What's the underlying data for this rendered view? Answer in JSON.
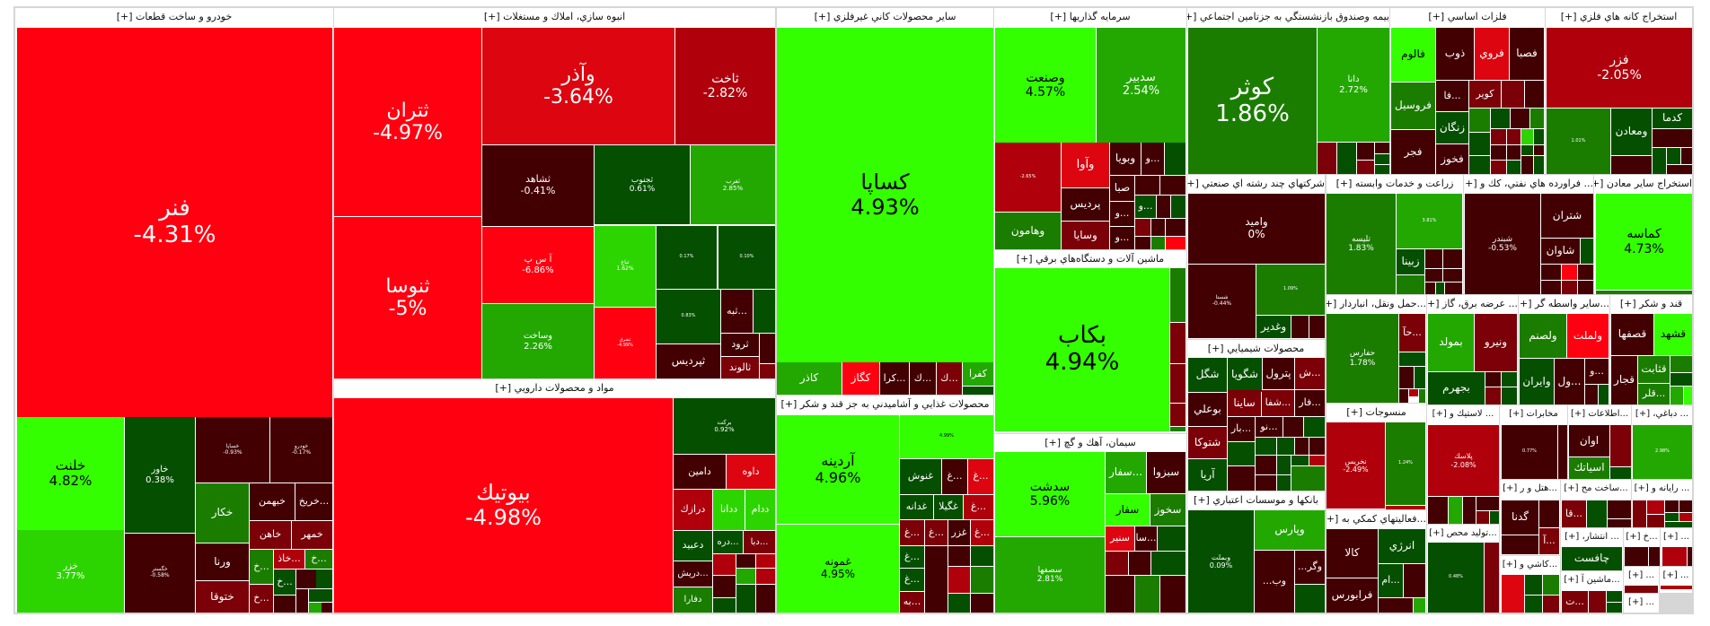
{
  "palette": {
    "R1": "#ff0010",
    "R2": "#dc0510",
    "R3": "#b0000c",
    "R4": "#7b0008",
    "R5": "#430003",
    "G1": "#33ff00",
    "G2": "#2dd500",
    "G3": "#22a800",
    "G4": "#1a7d00",
    "G5": "#054f00"
  },
  "sectors": [
    "خودرو و ساخت قطعات [+]",
    "انبوه سازي، املاك و مستغلات [+]",
    "مواد و محصولات دارويي [+]",
    "ساير محصولات كاني غيرفلزي [+]",
    "محصولات غذايي و آشاميدني به جز قند و شكر [+]",
    "سرمايه گذاريها [+]",
    "ماشين آلات و دستگاه‌هاي برقي [+]",
    "سيمان، آهك و گچ [+]",
    "بيمه وصندوق بازنشستگي به جزتامين اجتماعي [+]",
    "شركتهاي چند رشته اي صنعتي [+]",
    "محصولات شيميايي [+]",
    "بانكها و موسسات اعتباري [+]",
    "فلزات اساسي [+]",
    "استخراج كانه هاي فلزي [+]",
    "زراعت و خدمات وابسته [+]",
    "... فراورده هاي نفتي، كك و [+]",
    "استخراج ساير معادن [+]",
    "...حمل ونقل، انباردار [+]",
    "منسوجات [+]",
    "...فعاليتهاي كمكي به [+]",
    "... عرضه برق، گاز [+]",
    "...ساير واسطه گر [+]",
    "قند و شكر [+]",
    "... لاستيك و [+]",
    "...توليد محص [+]",
    "مخابرات [+]",
    "...اطلاعات [+]",
    "... دباغي، [+]",
    "...هتل و ر [+]",
    "...ساخت مح [+]",
    "... رايانه و [+]",
    "...كاشي و [+]",
    "... انتشار، [+]",
    "...ماشين آ [+]",
    "...خ [+]",
    "... [+]",
    "... [+]",
    "... [+]",
    "... [+]"
  ],
  "tiles": [
    {
      "s": "فنر",
      "p": "-4.31%",
      "c": "R1"
    },
    {
      "s": "خلنت",
      "p": "4.82%",
      "c": "G1"
    },
    {
      "s": "خزر",
      "p": "3.77%",
      "c": "G2"
    },
    {
      "s": "خاور",
      "p": "0.38%",
      "c": "G5"
    },
    {
      "s": "خگستر",
      "p": "-0.58%",
      "c": "R5"
    },
    {
      "s": "خساپا",
      "p": "-0.93%",
      "c": "R5"
    },
    {
      "s": "خودرو",
      "p": "-0.17%",
      "c": "R5"
    },
    {
      "s": "خكار",
      "c": "G4"
    },
    {
      "s": "ورنا",
      "c": "R5"
    },
    {
      "s": "ختوقا",
      "c": "R4"
    },
    {
      "s": "خبهمن",
      "c": "R5"
    },
    {
      "s": "خريخ...",
      "c": "R5"
    },
    {
      "s": "خاهن",
      "c": "R4"
    },
    {
      "s": "خمهر",
      "c": "R4"
    },
    {
      "s": "خ...",
      "c": "G4"
    },
    {
      "s": "خ...",
      "c": "R4"
    },
    {
      "s": "خاذ...",
      "c": "R3"
    },
    {
      "s": "خ...",
      "c": "G4"
    },
    {
      "s": "خ...",
      "c": "G5"
    },
    {
      "c": "R5"
    },
    {
      "c": "G5"
    },
    {
      "c": "R5"
    },
    {
      "c": "R5"
    },
    {
      "c": "G5"
    },
    {
      "c": "G3"
    },
    {
      "c": "R5"
    },
    {
      "s": "ثتران",
      "p": "-4.97%",
      "c": "R1"
    },
    {
      "s": "ثنوسا",
      "p": "-5%",
      "c": "R1"
    },
    {
      "s": "وآذر",
      "p": "-3.64%",
      "c": "R2"
    },
    {
      "s": "ثاخت",
      "p": "-2.82%",
      "c": "R3"
    },
    {
      "s": "ثشاهد",
      "p": "-0.41%",
      "c": "R5"
    },
    {
      "s": "ثجنوب",
      "p": "0.61%",
      "c": "G5"
    },
    {
      "s": "ثغرب",
      "p": "2.85%",
      "c": "G3"
    },
    {
      "s": "آ س پ",
      "p": "-6.86%",
      "c": "R1"
    },
    {
      "s": "وساخت",
      "p": "2.26%",
      "c": "G3"
    },
    {
      "s": "ثباغ",
      "p": "1.62%",
      "c": "G2"
    },
    {
      "s": "ثشرق",
      "p": "-4.99%",
      "c": "R1"
    },
    {
      "p": "0.17%",
      "c": "G5"
    },
    {
      "p": "0.10%",
      "c": "G5"
    },
    {
      "p": "0.83%",
      "c": "G5"
    },
    {
      "s": "ثبه...",
      "c": "R5"
    },
    {
      "c": "G5"
    },
    {
      "s": "ثرود",
      "c": "R5"
    },
    {
      "s": "ثالوند",
      "c": "R4"
    },
    {
      "s": "ثپرديس",
      "c": "R5"
    },
    {
      "c": "R5"
    },
    {
      "c": "R4"
    },
    {
      "s": "بيوتيك",
      "p": "-4.98%",
      "c": "R1"
    },
    {
      "s": "بركت",
      "p": "0.92%",
      "c": "G5"
    },
    {
      "s": "دامين",
      "c": "R5"
    },
    {
      "s": "داوه",
      "c": "R2"
    },
    {
      "s": "درازك",
      "c": "R3"
    },
    {
      "s": "ددانا",
      "c": "G2"
    },
    {
      "s": "ددام",
      "c": "G2"
    },
    {
      "s": "دعبيد",
      "c": "G5"
    },
    {
      "s": "دره...",
      "c": "G5"
    },
    {
      "s": "دبا...",
      "c": "R4"
    },
    {
      "s": "دريش...",
      "c": "R5"
    },
    {
      "s": "دفارا",
      "c": "G4"
    },
    {
      "c": "R3"
    },
    {
      "c": "R5"
    },
    {
      "c": "R3"
    },
    {
      "c": "R5"
    },
    {
      "c": "G5"
    },
    {
      "c": "G3"
    },
    {
      "c": "R3"
    },
    {
      "c": "G5"
    },
    {
      "c": "R5"
    },
    {
      "s": "كساپا",
      "p": "4.93%",
      "c": "G1"
    },
    {
      "s": "كاذر",
      "c": "G3"
    },
    {
      "s": "كگاز",
      "c": "R1"
    },
    {
      "s": "كرا...",
      "c": "R5"
    },
    {
      "s": "ك...",
      "c": "R5"
    },
    {
      "s": "ك...",
      "c": "R4"
    },
    {
      "s": "كفرا",
      "c": "G3"
    },
    {
      "c": "G5"
    },
    {
      "s": "آردينه",
      "p": "4.96%",
      "c": "G1"
    },
    {
      "s": "غمونه",
      "p": "4.95%",
      "c": "G1"
    },
    {
      "p": "4.99%",
      "c": "G1"
    },
    {
      "s": "غنوش",
      "c": "G5"
    },
    {
      "s": "غ...",
      "c": "R5"
    },
    {
      "s": "غ...",
      "c": "R2"
    },
    {
      "s": "غدانه",
      "c": "G5"
    },
    {
      "s": "غگيلا",
      "c": "G5"
    },
    {
      "s": "غ...",
      "c": "R3"
    },
    {
      "s": "غ...",
      "c": "R4"
    },
    {
      "s": "غ...",
      "c": "R4"
    },
    {
      "s": "غزر",
      "c": "R5"
    },
    {
      "s": "غ...",
      "c": "R3"
    },
    {
      "s": "غ...",
      "c": "G5"
    },
    {
      "s": "غ...",
      "c": "G5"
    },
    {
      "s": "به...",
      "c": "R4"
    },
    {
      "c": "R5"
    },
    {
      "c": "R5"
    },
    {
      "c": "G5"
    },
    {
      "c": "R3"
    },
    {
      "c": "G4"
    },
    {
      "c": "G5"
    },
    {
      "c": "R5"
    },
    {
      "s": "وصنعت",
      "p": "4.57%",
      "c": "G1"
    },
    {
      "s": "سدبير",
      "p": "2.54%",
      "c": "G3"
    },
    {
      "p": "-2.65%",
      "c": "R3"
    },
    {
      "s": "وهامون",
      "c": "G4"
    },
    {
      "s": "وآوا",
      "c": "R2"
    },
    {
      "s": "پرديس",
      "c": "R5"
    },
    {
      "s": "وسايا",
      "c": "R4"
    },
    {
      "s": "وبويا",
      "c": "R5"
    },
    {
      "s": "و...",
      "c": "R5"
    },
    {
      "c": "G5"
    },
    {
      "s": "صبا",
      "c": "R5"
    },
    {
      "c": "R5"
    },
    {
      "c": "R5"
    },
    {
      "s": "و...",
      "c": "G5"
    },
    {
      "c": "R5"
    },
    {
      "c": "G5"
    },
    {
      "s": "و...",
      "c": "R5"
    },
    {
      "s": "و...",
      "c": "R5"
    },
    {
      "c": "R4"
    },
    {
      "c": "R5"
    },
    {
      "c": "R5"
    },
    {
      "c": "R5"
    },
    {
      "c": "G4"
    },
    {
      "c": "R1"
    },
    {
      "s": "بكاب",
      "p": "4.94%",
      "c": "G1"
    },
    {
      "c": "G4"
    },
    {
      "c": "R4"
    },
    {
      "c": "R4"
    },
    {
      "c": "R4"
    },
    {
      "c": "G4"
    },
    {
      "s": "سدشت",
      "p": "5.96%",
      "c": "G1"
    },
    {
      "s": "سصفها",
      "p": "2.81%",
      "c": "G3"
    },
    {
      "s": "سفار...",
      "c": "G3"
    },
    {
      "s": "سبزوا",
      "c": "R5"
    },
    {
      "s": "سفار",
      "c": "G1"
    },
    {
      "s": "سخوز",
      "c": "G4"
    },
    {
      "s": "سنير",
      "c": "R2"
    },
    {
      "s": "سا...",
      "c": "R5"
    },
    {
      "c": "G5"
    },
    {
      "c": "R4"
    },
    {
      "c": "R5"
    },
    {
      "c": "G5"
    },
    {
      "c": "R5"
    },
    {
      "c": "G4"
    },
    {
      "c": "R5"
    },
    {
      "s": "كوثر",
      "p": "1.86%",
      "c": "G4"
    },
    {
      "s": "دانا",
      "p": "2.72%",
      "c": "G3"
    },
    {
      "c": "R4"
    },
    {
      "c": "G5"
    },
    {
      "c": "R5"
    },
    {
      "c": "R4"
    },
    {
      "c": "R5"
    },
    {
      "c": "G5"
    },
    {
      "c": "G5"
    },
    {
      "s": "واميد",
      "p": "0%",
      "c": "R5"
    },
    {
      "s": "شستا",
      "p": "-0.44%",
      "c": "R5"
    },
    {
      "p": "1.09%",
      "c": "G4"
    },
    {
      "s": "وغدير",
      "c": "G5"
    },
    {
      "c": "R5"
    },
    {
      "c": "R5"
    },
    {
      "s": "شگل",
      "c": "G5"
    },
    {
      "s": "شگويا",
      "c": "G5"
    },
    {
      "s": "پترول",
      "c": "R5"
    },
    {
      "s": "ش...",
      "c": "R4"
    },
    {
      "s": "بوعلي",
      "c": "R5"
    },
    {
      "s": "ساينا",
      "c": "R4"
    },
    {
      "s": "شفا...",
      "c": "R4"
    },
    {
      "s": "فار...",
      "c": "R5"
    },
    {
      "s": "شتوكا",
      "c": "R4"
    },
    {
      "s": "آريا",
      "c": "G5"
    },
    {
      "s": "بار...",
      "c": "R5"
    },
    {
      "s": "نو...",
      "c": "R5"
    },
    {
      "c": "R5"
    },
    {
      "c": "G5"
    },
    {
      "c": "G5"
    },
    {
      "c": "G5"
    },
    {
      "c": "G5"
    },
    {
      "c": "R5"
    },
    {
      "c": "R5"
    },
    {
      "c": "R5"
    },
    {
      "c": "R5"
    },
    {
      "c": "G5"
    },
    {
      "c": "G5"
    },
    {
      "c": "R3"
    },
    {
      "c": "R5"
    },
    {
      "c": "G5"
    },
    {
      "c": "G4"
    },
    {
      "s": "وبملت",
      "p": "0.09%",
      "c": "G5"
    },
    {
      "s": "وپارس",
      "c": "G3"
    },
    {
      "s": "...وب",
      "c": "R5"
    },
    {
      "s": "...وگر",
      "c": "R5"
    },
    {
      "c": "G5"
    },
    {
      "s": "فالوم",
      "c": "G1"
    },
    {
      "s": "فروسيل",
      "c": "G4"
    },
    {
      "s": "فجر",
      "c": "R5"
    },
    {
      "s": "ذوب",
      "c": "R5"
    },
    {
      "s": "فروي",
      "c": "R2"
    },
    {
      "s": "فصبا",
      "c": "R5"
    },
    {
      "s": "فا...",
      "c": "R5"
    },
    {
      "s": "كوير",
      "c": "R4"
    },
    {
      "c": "R4"
    },
    {
      "c": "R5"
    },
    {
      "s": "زنگان",
      "c": "G5"
    },
    {
      "s": "فخوز",
      "c": "R5"
    },
    {
      "c": "G4"
    },
    {
      "c": "G5"
    },
    {
      "c": "R5"
    },
    {
      "c": "G4"
    },
    {
      "c": "G5"
    },
    {
      "c": "R4"
    },
    {
      "c": "R4"
    },
    {
      "c": "G2"
    },
    {
      "c": "G5"
    },
    {
      "c": "G5"
    },
    {
      "c": "R5"
    },
    {
      "c": "R5"
    },
    {
      "c": "G5"
    },
    {
      "c": "R5"
    },
    {
      "c": "R4"
    },
    {
      "c": "G5"
    },
    {
      "c": "R5"
    },
    {
      "c": "G5"
    },
    {
      "s": "فزر",
      "p": "-2.05%",
      "c": "R3"
    },
    {
      "p": "1.01%",
      "c": "G4"
    },
    {
      "s": "ومعادن",
      "c": "G5"
    },
    {
      "s": "كدما",
      "c": "G5"
    },
    {
      "c": "R5"
    },
    {
      "c": "R5"
    },
    {
      "c": "G5"
    },
    {
      "c": "G5"
    },
    {
      "c": "R5"
    },
    {
      "c": "R5"
    },
    {
      "s": "تليسه",
      "p": "1.83%",
      "c": "G4"
    },
    {
      "p": "3.81%",
      "c": "G3"
    },
    {
      "s": "زبينا",
      "c": "G5"
    },
    {
      "c": "G4"
    },
    {
      "c": "R5"
    },
    {
      "c": "R5"
    },
    {
      "c": "R5"
    },
    {
      "c": "R5"
    },
    {
      "c": "R5"
    },
    {
      "c": "G5"
    },
    {
      "c": "R5"
    },
    {
      "s": "شبندر",
      "p": "-0.53%",
      "c": "R5"
    },
    {
      "s": "شتران",
      "c": "R5"
    },
    {
      "s": "شاوان",
      "c": "R5"
    },
    {
      "c": "G5"
    },
    {
      "c": "R5"
    },
    {
      "c": "R1"
    },
    {
      "c": "R5"
    },
    {
      "c": "R5"
    },
    {
      "c": "R4"
    },
    {
      "c": "R5"
    },
    {
      "s": "كماسه",
      "p": "4.73%",
      "c": "G1"
    },
    {
      "c": "G4"
    },
    {
      "s": "حفارس",
      "p": "1.78%",
      "c": "G4"
    },
    {
      "s": "حآ...",
      "c": "R4"
    },
    {
      "c": "G5"
    },
    {
      "c": "R5"
    },
    {
      "c": "G5"
    },
    {
      "c": "R5"
    },
    {
      "c": "R3"
    },
    {
      "c": "G4"
    },
    {
      "s": "نخريس",
      "p": "-2.49%",
      "c": "R3"
    },
    {
      "p": "1.24%",
      "c": "G4"
    },
    {
      "c": "R3"
    },
    {
      "s": "كالا",
      "c": "R5"
    },
    {
      "s": "فرابورس",
      "c": "R5"
    },
    {
      "s": "انرژي",
      "c": "G5"
    },
    {
      "s": "ام...",
      "c": "G5"
    },
    {
      "c": "R5"
    },
    {
      "c": "R5"
    },
    {
      "c": "G3"
    },
    {
      "s": "بمولد",
      "c": "G3"
    },
    {
      "s": "ونيرو",
      "c": "R4"
    },
    {
      "s": "بجهرم",
      "c": "G5"
    },
    {
      "c": "R5"
    },
    {
      "c": "G5"
    },
    {
      "c": "R4"
    },
    {
      "c": "G5"
    },
    {
      "s": "ولصنم",
      "c": "G4"
    },
    {
      "s": "ولملت",
      "c": "R1"
    },
    {
      "s": "وايران",
      "c": "G5"
    },
    {
      "s": "ول...",
      "c": "R5"
    },
    {
      "s": "و...",
      "c": "R5"
    },
    {
      "c": "R5"
    },
    {
      "c": "G5"
    },
    {
      "s": "قصفها",
      "c": "R5"
    },
    {
      "s": "قشهد",
      "c": "G1"
    },
    {
      "s": "قجار",
      "c": "R5"
    },
    {
      "s": "قثابت",
      "c": "G4"
    },
    {
      "s": "قلر...",
      "c": "G4"
    },
    {
      "c": "G4"
    },
    {
      "c": "G5"
    },
    {
      "c": "G3"
    },
    {
      "c": "G1"
    },
    {
      "s": "پلاسك",
      "p": "-2.08%",
      "c": "R3"
    },
    {
      "c": "R5"
    },
    {
      "c": "G3"
    },
    {
      "c": "R5"
    },
    {
      "c": "R5"
    },
    {
      "c": "R4"
    },
    {
      "c": "G5"
    },
    {
      "p": "0.48%",
      "c": "G5"
    },
    {
      "c": "R4"
    },
    {
      "p": "0.77%",
      "c": "R5"
    },
    {
      "c": "R5"
    },
    {
      "s": "اوان",
      "c": "R5"
    },
    {
      "s": "اسياتك",
      "c": "G4"
    },
    {
      "c": "R4"
    },
    {
      "c": "G5"
    },
    {
      "p": "2.98%",
      "c": "G3"
    },
    {
      "s": "گدنا",
      "c": "R5"
    },
    {
      "c": "R5"
    },
    {
      "s": "آ...",
      "c": "R4"
    },
    {
      "c": "R5"
    },
    {
      "s": "قا...",
      "c": "R4"
    },
    {
      "c": "G5"
    },
    {
      "c": "R5"
    },
    {
      "c": "R5"
    },
    {
      "c": "R4"
    },
    {
      "c": "R3"
    },
    {
      "c": "R5"
    },
    {
      "c": "R5"
    },
    {
      "c": "R4"
    },
    {
      "c": "G5"
    },
    {
      "c": "R3"
    },
    {
      "c": "G5"
    },
    {
      "c": "R2"
    },
    {
      "c": "G5"
    },
    {
      "c": "G4"
    },
    {
      "c": "G5"
    },
    {
      "c": "R4"
    },
    {
      "s": "چافست",
      "c": "G5"
    },
    {
      "s": "ت...",
      "c": "R4"
    },
    {
      "c": "R4"
    },
    {
      "c": "G5"
    },
    {
      "c": "G5"
    },
    {
      "c": "R5"
    },
    {
      "c": "R5"
    },
    {
      "c": "R3"
    },
    {
      "c": "R5"
    },
    {
      "c": "R4"
    },
    {
      "c": "R3"
    }
  ]
}
